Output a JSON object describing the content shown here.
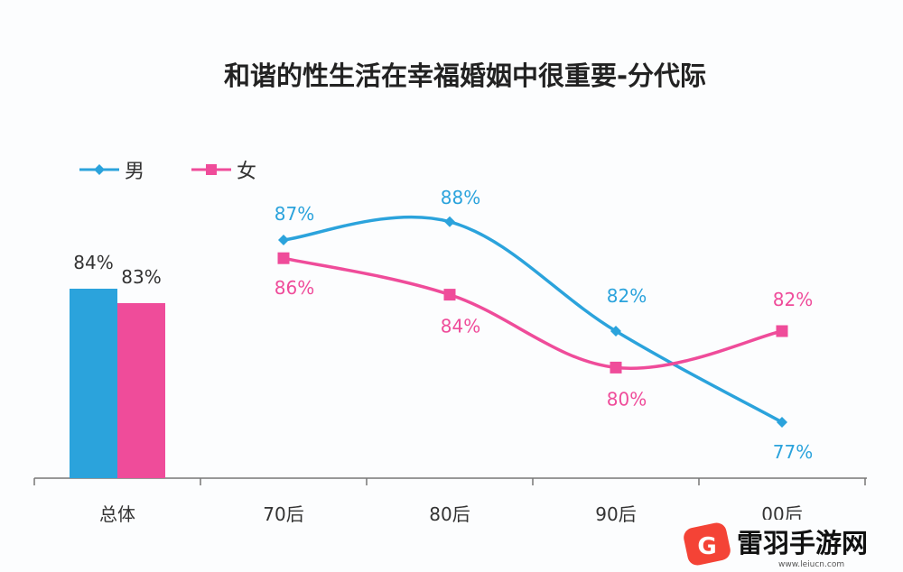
{
  "chart_data": {
    "type": "bar+line",
    "title": "和谐的性生活在幸福婚姻中很重要-分代际",
    "categories": [
      "总体",
      "70后",
      "80后",
      "90后",
      "00后"
    ],
    "series": [
      {
        "name": "男",
        "color": "#2ba3dc",
        "bar_value": 84,
        "line_values": [
          87,
          88,
          82,
          77
        ]
      },
      {
        "name": "女",
        "color": "#ef4c9a",
        "bar_value": 83,
        "line_values": [
          86,
          84,
          80,
          82
        ]
      }
    ],
    "unit": "%",
    "legend_position": "top-left",
    "grid": false
  },
  "watermark": {
    "text": "雷羽手游网",
    "url": "www.leiucn.com"
  }
}
